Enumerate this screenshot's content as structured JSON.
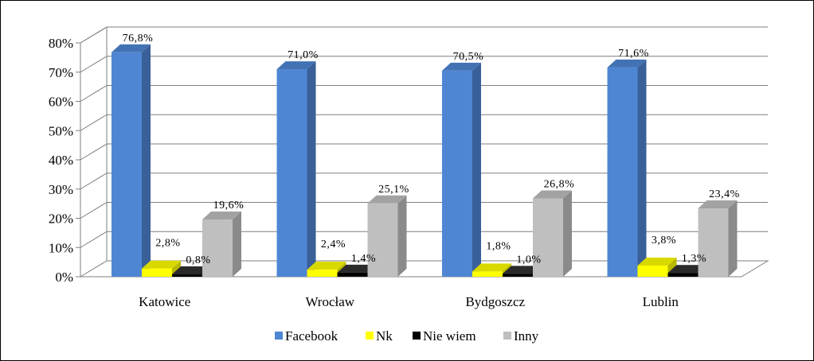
{
  "chart_data": {
    "type": "bar",
    "three_d": true,
    "categories": [
      "Katowice",
      "Wrocław",
      "Bydgoszcz",
      "Lublin"
    ],
    "series": [
      {
        "name": "Facebook",
        "values": [
          76.8,
          71.0,
          70.5,
          71.6
        ],
        "labels": [
          "76,8%",
          "71,0%",
          "70,5%",
          "71,6%"
        ],
        "color": "#4F86D4"
      },
      {
        "name": "Nk",
        "values": [
          2.8,
          2.4,
          1.8,
          3.8
        ],
        "labels": [
          "2,8%",
          "2,4%",
          "1,8%",
          "3,8%"
        ],
        "color": "#FFFF00"
      },
      {
        "name": "Nie wiem",
        "values": [
          0.8,
          1.4,
          1.0,
          1.3
        ],
        "labels": [
          "0,8%",
          "1,4%",
          "1,0%",
          "1,3%"
        ],
        "color": "#000000"
      },
      {
        "name": "Inny",
        "values": [
          19.6,
          25.1,
          26.8,
          23.4
        ],
        "labels": [
          "19,6%",
          "25,1%",
          "26,8%",
          "23,4%"
        ],
        "color": "#BFBFBF"
      }
    ],
    "y_ticks": [
      "0%",
      "10%",
      "20%",
      "30%",
      "40%",
      "50%",
      "60%",
      "70%",
      "80%"
    ],
    "ylim": [
      0,
      80
    ],
    "grid": true,
    "legend": "bottom"
  }
}
